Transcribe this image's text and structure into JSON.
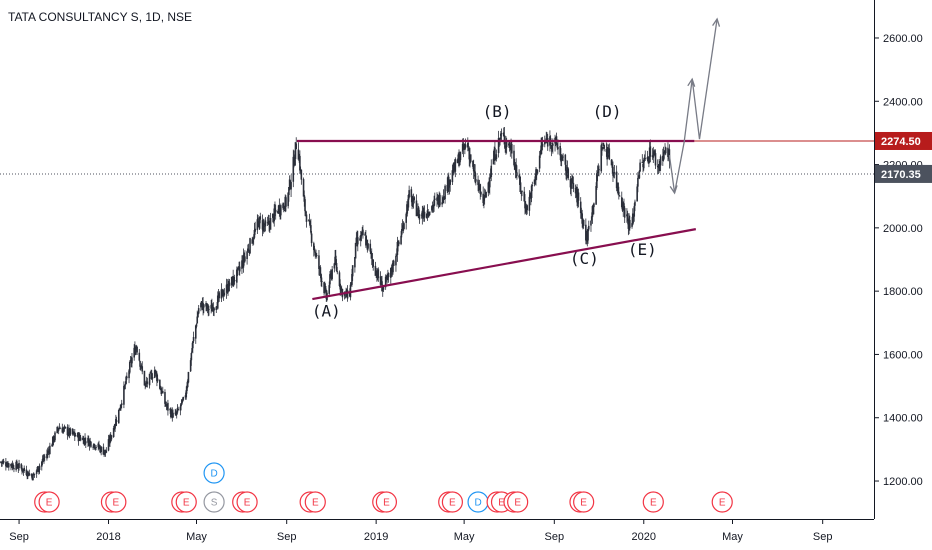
{
  "title": "TATA CONSULTANCY S, 1D, NSE",
  "colors": {
    "candle": "#2a2e39",
    "trendline": "#880e4f",
    "arrow": "#787b86",
    "last_price_tag": "#b71c1c",
    "current_price_tag": "#4c525e",
    "earnings": "#f23645",
    "dividend": "#2196f3",
    "split": "#9598a1",
    "axis_text": "#131722",
    "axis_line": "#131722"
  },
  "chart_data": {
    "type": "candlestick",
    "x_axis": {
      "ticks": [
        {
          "label": "Sep",
          "date": "2017-09-01"
        },
        {
          "label": "2018",
          "date": "2018-01-01"
        },
        {
          "label": "May",
          "date": "2018-05-01"
        },
        {
          "label": "Sep",
          "date": "2018-09-01"
        },
        {
          "label": "2019",
          "date": "2019-01-01"
        },
        {
          "label": "May",
          "date": "2019-05-01"
        },
        {
          "label": "Sep",
          "date": "2019-09-01"
        },
        {
          "label": "2020",
          "date": "2020-01-01"
        },
        {
          "label": "May",
          "date": "2020-05-01"
        },
        {
          "label": "Sep",
          "date": "2020-09-01"
        }
      ],
      "range": [
        "2017-08-06",
        "2020-11-10"
      ]
    },
    "y_axis": {
      "ticks": [
        1200,
        1400,
        1600,
        1800,
        2000,
        2200,
        2400,
        2600
      ],
      "tick_labels": [
        "1200.00",
        "1400.00",
        "1600.00",
        "1800.00",
        "2000.00",
        "2200.00",
        "2400.00",
        "2600.00"
      ],
      "range": [
        1080,
        2720
      ]
    },
    "price_path": [
      [
        "2017-08-07",
        1260
      ],
      [
        "2017-09-01",
        1245
      ],
      [
        "2017-09-20",
        1215
      ],
      [
        "2017-10-10",
        1290
      ],
      [
        "2017-10-25",
        1370
      ],
      [
        "2017-11-20",
        1340
      ],
      [
        "2017-12-10",
        1320
      ],
      [
        "2017-12-28",
        1290
      ],
      [
        "2018-01-15",
        1420
      ],
      [
        "2018-02-01",
        1580
      ],
      [
        "2018-02-08",
        1630
      ],
      [
        "2018-02-20",
        1500
      ],
      [
        "2018-03-05",
        1550
      ],
      [
        "2018-03-20",
        1440
      ],
      [
        "2018-04-01",
        1400
      ],
      [
        "2018-04-15",
        1460
      ],
      [
        "2018-04-25",
        1620
      ],
      [
        "2018-05-05",
        1760
      ],
      [
        "2018-05-20",
        1740
      ],
      [
        "2018-06-05",
        1790
      ],
      [
        "2018-06-25",
        1850
      ],
      [
        "2018-07-10",
        1930
      ],
      [
        "2018-07-25",
        2020
      ],
      [
        "2018-08-05",
        2000
      ],
      [
        "2018-08-20",
        2060
      ],
      [
        "2018-09-01",
        2080
      ],
      [
        "2018-09-08",
        2170
      ],
      [
        "2018-09-15",
        2280
      ],
      [
        "2018-09-25",
        2070
      ],
      [
        "2018-10-10",
        1920
      ],
      [
        "2018-10-25",
        1780
      ],
      [
        "2018-11-05",
        1900
      ],
      [
        "2018-11-15",
        1800
      ],
      [
        "2018-11-25",
        1780
      ],
      [
        "2018-12-05",
        1950
      ],
      [
        "2018-12-15",
        1980
      ],
      [
        "2019-01-01",
        1860
      ],
      [
        "2019-01-10",
        1810
      ],
      [
        "2019-01-20",
        1850
      ],
      [
        "2019-02-05",
        1990
      ],
      [
        "2019-02-15",
        2100
      ],
      [
        "2019-03-01",
        2040
      ],
      [
        "2019-03-15",
        2060
      ],
      [
        "2019-04-01",
        2100
      ],
      [
        "2019-04-20",
        2200
      ],
      [
        "2019-05-05",
        2270
      ],
      [
        "2019-05-15",
        2160
      ],
      [
        "2019-05-28",
        2080
      ],
      [
        "2019-06-10",
        2220
      ],
      [
        "2019-06-20",
        2290
      ],
      [
        "2019-07-05",
        2250
      ],
      [
        "2019-07-15",
        2140
      ],
      [
        "2019-07-25",
        2060
      ],
      [
        "2019-08-05",
        2150
      ],
      [
        "2019-08-15",
        2260
      ],
      [
        "2019-08-25",
        2280
      ],
      [
        "2019-09-05",
        2260
      ],
      [
        "2019-09-15",
        2190
      ],
      [
        "2019-09-25",
        2140
      ],
      [
        "2019-10-05",
        2080
      ],
      [
        "2019-10-15",
        1960
      ],
      [
        "2019-10-25",
        2090
      ],
      [
        "2019-11-05",
        2260
      ],
      [
        "2019-11-15",
        2230
      ],
      [
        "2019-11-25",
        2140
      ],
      [
        "2019-12-05",
        2060
      ],
      [
        "2019-12-15",
        1990
      ],
      [
        "2019-12-25",
        2180
      ],
      [
        "2020-01-05",
        2220
      ],
      [
        "2020-01-12",
        2250
      ],
      [
        "2020-01-20",
        2190
      ],
      [
        "2020-01-28",
        2240
      ],
      [
        "2020-02-05",
        2230
      ]
    ],
    "trendlines": [
      {
        "name": "resistance",
        "start": [
          "2018-09-15",
          2274.5
        ],
        "end": [
          "2020-03-10",
          2274.5
        ]
      },
      {
        "name": "support",
        "start": [
          "2018-10-06",
          1775
        ],
        "end": [
          "2020-03-12",
          1996
        ]
      }
    ],
    "projection_path": [
      [
        "2020-02-05",
        2230
      ],
      [
        "2020-02-12",
        2110
      ],
      [
        "2020-02-25",
        2270
      ],
      [
        "2020-03-07",
        2470
      ],
      [
        "2020-03-17",
        2280
      ],
      [
        "2020-04-10",
        2660
      ]
    ],
    "wave_labels": [
      {
        "text": "(A)",
        "date": "2018-10-25",
        "price": 1720
      },
      {
        "text": "(B)",
        "date": "2019-06-15",
        "price": 2350
      },
      {
        "text": "(C)",
        "date": "2019-10-12",
        "price": 1885
      },
      {
        "text": "(D)",
        "date": "2019-11-12",
        "price": 2350
      },
      {
        "text": "(E)",
        "date": "2019-12-30",
        "price": 1915
      }
    ],
    "price_labels": [
      {
        "value": 2274.5,
        "label": "2274.50",
        "kind": "line"
      },
      {
        "value": 2170.35,
        "label": "2170.35",
        "kind": "current"
      }
    ],
    "events": [
      {
        "letter": "E",
        "date": "2017-10-06",
        "kind": "earnings"
      },
      {
        "letter": "E",
        "date": "2017-10-12",
        "kind": "earnings"
      },
      {
        "letter": "E",
        "date": "2018-01-05",
        "kind": "earnings"
      },
      {
        "letter": "E",
        "date": "2018-01-11",
        "kind": "earnings"
      },
      {
        "letter": "E",
        "date": "2018-04-11",
        "kind": "earnings"
      },
      {
        "letter": "E",
        "date": "2018-04-17",
        "kind": "earnings"
      },
      {
        "letter": "S",
        "date": "2018-05-25",
        "kind": "split"
      },
      {
        "letter": "D",
        "date": "2018-05-25",
        "kind": "dividend",
        "stack": 1
      },
      {
        "letter": "E",
        "date": "2018-07-03",
        "kind": "earnings"
      },
      {
        "letter": "E",
        "date": "2018-07-09",
        "kind": "earnings"
      },
      {
        "letter": "E",
        "date": "2018-10-03",
        "kind": "earnings"
      },
      {
        "letter": "E",
        "date": "2018-10-10",
        "kind": "earnings"
      },
      {
        "letter": "E",
        "date": "2019-01-10",
        "kind": "earnings"
      },
      {
        "letter": "E",
        "date": "2019-01-15",
        "kind": "earnings"
      },
      {
        "letter": "E",
        "date": "2019-04-10",
        "kind": "earnings"
      },
      {
        "letter": "E",
        "date": "2019-04-15",
        "kind": "earnings"
      },
      {
        "letter": "D",
        "date": "2019-05-20",
        "kind": "dividend"
      },
      {
        "letter": "E",
        "date": "2019-06-15",
        "kind": "earnings"
      },
      {
        "letter": "E",
        "date": "2019-06-21",
        "kind": "earnings"
      },
      {
        "letter": "E",
        "date": "2019-07-08",
        "kind": "earnings"
      },
      {
        "letter": "E",
        "date": "2019-07-13",
        "kind": "earnings"
      },
      {
        "letter": "E",
        "date": "2019-10-06",
        "kind": "earnings"
      },
      {
        "letter": "E",
        "date": "2019-10-11",
        "kind": "earnings"
      },
      {
        "letter": "E",
        "date": "2020-01-14",
        "kind": "earnings"
      },
      {
        "letter": "E",
        "date": "2020-04-17",
        "kind": "earnings"
      }
    ]
  }
}
